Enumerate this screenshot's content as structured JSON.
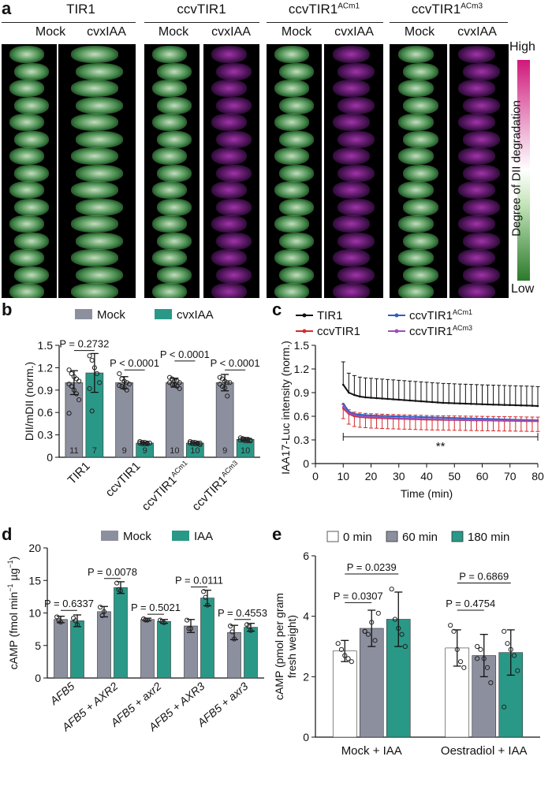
{
  "panel_letters": {
    "a": "a",
    "b": "b",
    "c": "c",
    "d": "d",
    "e": "e"
  },
  "panel_a": {
    "conditions": [
      {
        "base": "TIR1",
        "sup": ""
      },
      {
        "base": "ccvTIR1",
        "sup": ""
      },
      {
        "base": "ccvTIR1",
        "sup": "ACm1"
      },
      {
        "base": "ccvTIR1",
        "sup": "ACm3"
      }
    ],
    "treatments": [
      "Mock",
      "cvxIAA"
    ],
    "degradation_shown": [
      "low",
      "low",
      "low",
      "high",
      "low",
      "high",
      "low",
      "high"
    ],
    "colorbar": {
      "title": "Degree of DII degradation",
      "high_label": "High",
      "low_label": "Low",
      "high_color": "#d0187a",
      "low_color": "#2c7a2c"
    }
  },
  "chart_data": [
    {
      "panel": "b",
      "type": "bar",
      "categories": [
        {
          "base": "TIR1",
          "sup": ""
        },
        {
          "base": "ccvTIR1",
          "sup": ""
        },
        {
          "base": "ccvTIR1",
          "sup": "ACm1"
        },
        {
          "base": "ccvTIR1",
          "sup": "ACm3"
        }
      ],
      "series": [
        {
          "name": "Mock",
          "color": "#8c8f9e",
          "values": [
            1.0,
            1.0,
            1.0,
            1.0
          ],
          "errors": [
            0.16,
            0.08,
            0.06,
            0.11
          ],
          "n": [
            "11",
            "9",
            "10",
            "9"
          ]
        },
        {
          "name": "cvxIAA",
          "color": "#2a9887",
          "values": [
            1.13,
            0.19,
            0.19,
            0.24
          ],
          "errors": [
            0.26,
            0.015,
            0.015,
            0.02
          ],
          "n": [
            "7",
            "9",
            "10",
            "10"
          ]
        }
      ],
      "points": [
        [
          [
            1.17,
            1.12,
            1.08,
            1.05,
            1.02,
            0.98,
            0.95,
            0.9,
            0.85,
            0.77,
            0.59
          ],
          [
            1.36,
            1.3,
            1.2,
            1.12,
            1.0,
            0.92,
            0.62
          ]
        ],
        [
          [
            1.12,
            1.05,
            1.02,
            1.0,
            0.98,
            0.96,
            0.95,
            0.93,
            0.9
          ],
          [
            0.21,
            0.2,
            0.2,
            0.19,
            0.19,
            0.19,
            0.18,
            0.18,
            0.18
          ]
        ],
        [
          [
            1.07,
            1.05,
            1.03,
            1.02,
            1.0,
            1.0,
            0.98,
            0.97,
            0.95,
            0.92
          ],
          [
            0.21,
            0.2,
            0.2,
            0.19,
            0.19,
            0.19,
            0.18,
            0.18,
            0.18,
            0.17
          ]
        ],
        [
          [
            1.07,
            1.05,
            1.02,
            1.0,
            1.0,
            0.98,
            0.95,
            0.93,
            0.82
          ],
          [
            0.26,
            0.25,
            0.24,
            0.24,
            0.23,
            0.23,
            0.23,
            0.22,
            0.22,
            0.22
          ]
        ]
      ],
      "ylabel": "DII/mDII (norm.)",
      "ylim": [
        0,
        1.5
      ],
      "yticks": [
        "0",
        "0.3",
        "0.6",
        "0.9",
        "1.2",
        "1.5"
      ],
      "annotations": [
        {
          "text": "P = 0.2732",
          "group": 0,
          "level": 1.43
        },
        {
          "text": "P < 0.0001",
          "group": 1,
          "level": 1.17
        },
        {
          "text": "P < 0.0001",
          "group": 2,
          "level": 1.29
        },
        {
          "text": "P < 0.0001",
          "group": 3,
          "level": 1.17
        }
      ]
    },
    {
      "panel": "c",
      "type": "line",
      "x": [
        10,
        12,
        14,
        16,
        18,
        20,
        22,
        24,
        26,
        28,
        30,
        32,
        34,
        36,
        38,
        40,
        42,
        44,
        46,
        48,
        50,
        52,
        54,
        56,
        58,
        60,
        62,
        64,
        66,
        68,
        70,
        72,
        74,
        76,
        78,
        80
      ],
      "series": [
        {
          "name": {
            "base": "TIR1",
            "sup": ""
          },
          "color": "#111111",
          "values": [
            1.0,
            0.9,
            0.87,
            0.85,
            0.84,
            0.835,
            0.83,
            0.825,
            0.82,
            0.815,
            0.81,
            0.805,
            0.8,
            0.795,
            0.79,
            0.785,
            0.78,
            0.775,
            0.77,
            0.768,
            0.765,
            0.762,
            0.76,
            0.757,
            0.755,
            0.752,
            0.75,
            0.748,
            0.746,
            0.744,
            0.742,
            0.74,
            0.738,
            0.736,
            0.734,
            0.73
          ],
          "error": 0.29
        },
        {
          "name": {
            "base": "ccvTIR1",
            "sup": ""
          },
          "color": "#d62a2a",
          "values": [
            0.7,
            0.63,
            0.6,
            0.59,
            0.585,
            0.58,
            0.578,
            0.575,
            0.572,
            0.57,
            0.568,
            0.566,
            0.564,
            0.562,
            0.56,
            0.558,
            0.556,
            0.555,
            0.554,
            0.553,
            0.552,
            0.551,
            0.55,
            0.549,
            0.548,
            0.547,
            0.546,
            0.545,
            0.544,
            0.543,
            0.542,
            0.541,
            0.54,
            0.539,
            0.538,
            0.537
          ],
          "error": 0.13
        },
        {
          "name": {
            "base": "ccvTIR1",
            "sup": "ACm1"
          },
          "color": "#2f5fbf",
          "values": [
            0.76,
            0.66,
            0.63,
            0.62,
            0.615,
            0.61,
            0.607,
            0.605,
            0.602,
            0.6,
            0.598,
            0.596,
            0.594,
            0.592,
            0.59,
            0.588,
            0.586,
            0.584,
            0.582,
            0.58,
            0.578,
            0.576,
            0.574,
            0.572,
            0.57,
            0.568,
            0.566,
            0.564,
            0.562,
            0.56,
            0.558,
            0.556,
            0.554,
            0.552,
            0.551,
            0.55
          ],
          "error": 0
        },
        {
          "name": {
            "base": "ccvTIR1",
            "sup": "ACm3"
          },
          "color": "#9a4fb8",
          "values": [
            0.72,
            0.64,
            0.615,
            0.6,
            0.595,
            0.59,
            0.587,
            0.584,
            0.581,
            0.578,
            0.575,
            0.573,
            0.571,
            0.569,
            0.567,
            0.565,
            0.563,
            0.561,
            0.559,
            0.557,
            0.556,
            0.555,
            0.554,
            0.553,
            0.552,
            0.551,
            0.55,
            0.549,
            0.548,
            0.547,
            0.546,
            0.545,
            0.544,
            0.543,
            0.542,
            0.541
          ],
          "error": 0
        }
      ],
      "xlabel": "Time (min)",
      "ylabel": "IAA17-Luc intensity (norm.)",
      "xlim": [
        0,
        80
      ],
      "ylim": [
        0,
        1.5
      ],
      "xticks": [
        "0",
        "10",
        "20",
        "30",
        "40",
        "50",
        "60",
        "70",
        "80"
      ],
      "yticks": [
        "0",
        "0.3",
        "0.6",
        "0.9",
        "1.2",
        "1.5"
      ],
      "significance": {
        "text": "**",
        "x_from": 10,
        "x_to": 80,
        "level": 0.34
      }
    },
    {
      "panel": "d",
      "type": "bar",
      "categories": [
        "AFB5",
        "AFB5 + AXR2",
        "AFB5 + axr2",
        "AFB5 + AXR3",
        "AFB5 + axr3"
      ],
      "series": [
        {
          "name": "Mock",
          "color": "#8c8f9e",
          "values": [
            9.0,
            10.2,
            9.0,
            8.0,
            7.0
          ],
          "errors": [
            0.5,
            0.8,
            0.2,
            1.0,
            1.1
          ]
        },
        {
          "name": "IAA",
          "color": "#2a9887",
          "values": [
            8.8,
            13.9,
            8.7,
            12.3,
            7.8
          ],
          "errors": [
            0.9,
            0.9,
            0.3,
            1.2,
            0.6
          ]
        }
      ],
      "points": [
        [
          [
            9.4,
            8.9,
            8.6
          ],
          [
            9.2,
            8.8,
            8.2
          ]
        ],
        [
          [
            10.9,
            9.6,
            10.2
          ],
          [
            14.6,
            13.6,
            13.4
          ]
        ],
        [
          [
            9.1,
            8.9,
            8.9
          ],
          [
            8.9,
            8.7,
            8.5
          ]
        ],
        [
          [
            8.9,
            7.6,
            7.6
          ],
          [
            13.3,
            12.4,
            11.2
          ]
        ],
        [
          [
            8.0,
            7.1,
            6.0
          ],
          [
            8.2,
            7.9,
            7.3
          ]
        ]
      ],
      "ylabel_main": "cAMP (fmol min",
      "ylabel_sup1": "−1",
      "ylabel_mid": " µg",
      "ylabel_sup2": "−1",
      "ylabel_end": ")",
      "ylim": [
        0,
        20
      ],
      "yticks": [
        "0",
        "5",
        "10",
        "15",
        "20"
      ],
      "annotations": [
        {
          "text": "P = 0.6337",
          "group": 0,
          "level": 10.4
        },
        {
          "text": "P = 0.0078",
          "group": 1,
          "level": 15.3
        },
        {
          "text": "P = 0.5021",
          "group": 2,
          "level": 9.8
        },
        {
          "text": "P = 0.0111",
          "group": 3,
          "level": 14.0
        },
        {
          "text": "P = 0.4553",
          "group": 4,
          "level": 9.0
        }
      ]
    },
    {
      "panel": "e",
      "type": "bar",
      "categories": [
        "Mock + IAA",
        "Oestradiol + IAA"
      ],
      "series": [
        {
          "name": "0 min",
          "color": "#ffffff",
          "values": [
            2.85,
            2.95
          ],
          "errors": [
            0.35,
            0.6
          ]
        },
        {
          "name": "60 min",
          "color": "#8c8f9e",
          "values": [
            3.6,
            2.7
          ],
          "errors": [
            0.6,
            0.7
          ]
        },
        {
          "name": "180 min",
          "color": "#2a9887",
          "values": [
            3.9,
            2.8
          ],
          "errors": [
            0.9,
            0.75
          ]
        }
      ],
      "points": [
        [
          [
            3.1,
            2.9,
            2.7,
            2.6,
            2.5
          ],
          [
            3.5,
            3.4,
            3.8,
            3.2,
            4.1,
            3.5
          ],
          [
            4.9,
            3.9,
            3.6,
            3.4,
            3.0
          ]
        ],
        [
          [
            3.7,
            3.5,
            2.9,
            2.5,
            2.3
          ],
          [
            3.0,
            2.9,
            2.6,
            2.3,
            1.8,
            2.6
          ],
          [
            3.5,
            3.1,
            2.9,
            2.7,
            2.2,
            1.0
          ]
        ]
      ],
      "ylabel_line1": "cAMP (pmol per gram",
      "ylabel_line2": "fresh weight)",
      "ylim": [
        0,
        6
      ],
      "yticks": [
        "0",
        "2",
        "4",
        "6"
      ],
      "annotations": [
        {
          "text": "P = 0.0307",
          "group": 0,
          "from": 0,
          "to": 1,
          "level": 4.45
        },
        {
          "text": "P = 0.0239",
          "group": 0,
          "from": 0,
          "to": 2,
          "level": 5.4
        },
        {
          "text": "P = 0.4754",
          "group": 1,
          "from": 0,
          "to": 1,
          "level": 4.2
        },
        {
          "text": "P = 0.6869",
          "group": 1,
          "from": 0,
          "to": 2,
          "level": 5.1
        }
      ]
    }
  ]
}
